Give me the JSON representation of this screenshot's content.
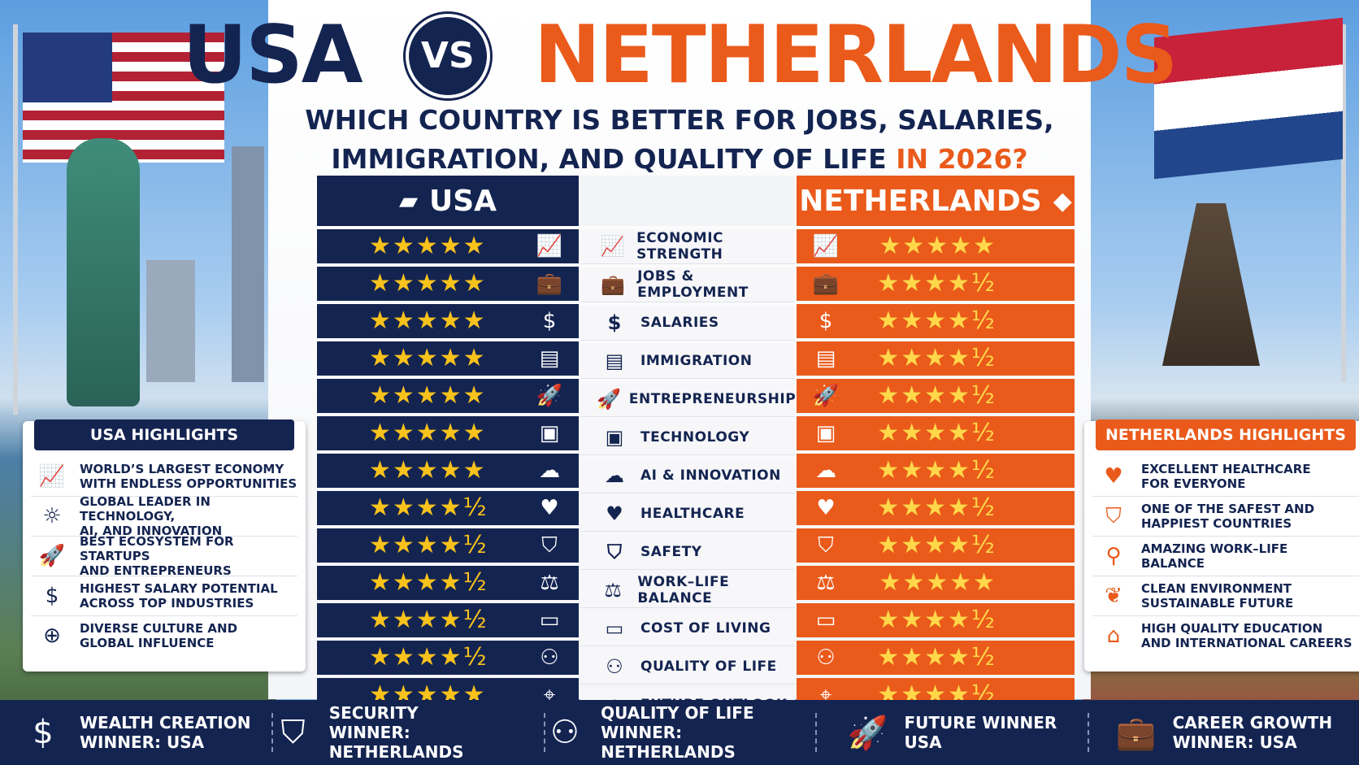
{
  "title": {
    "left": "USA",
    "vs": "VS",
    "right": "NETHERLANDS"
  },
  "subtitle": {
    "line1": "WHICH COUNTRY IS BETTER FOR JOBS, SALARIES,",
    "line2": "IMMIGRATION, AND QUALITY OF LIFE",
    "accent": "IN 2026?"
  },
  "table": {
    "usa_header": "USA",
    "nl_header": "NETHERLANDS",
    "rows": [
      {
        "label": "ECONOMIC STRENGTH",
        "icon": "chart-icon",
        "usa": "★★★★★",
        "nl": "★★★★★"
      },
      {
        "label": "JOBS & EMPLOYMENT",
        "icon": "briefcase-icon",
        "usa": "★★★★★",
        "nl": "★★★★½"
      },
      {
        "label": "SALARIES",
        "icon": "dollar-icon",
        "usa": "★★★★★",
        "nl": "★★★★½"
      },
      {
        "label": "IMMIGRATION",
        "icon": "passport-icon",
        "usa": "★★★★★",
        "nl": "★★★★½"
      },
      {
        "label": "ENTREPRENEURSHIP",
        "icon": "rocket-icon",
        "usa": "★★★★★",
        "nl": "★★★★½"
      },
      {
        "label": "TECHNOLOGY",
        "icon": "chip-icon",
        "usa": "★★★★★",
        "nl": "★★★★½"
      },
      {
        "label": "AI & INNOVATION",
        "icon": "brain-icon",
        "usa": "★★★★★",
        "nl": "★★★★½"
      },
      {
        "label": "HEALTHCARE",
        "icon": "heart-icon",
        "usa": "★★★★½",
        "nl": "★★★★½"
      },
      {
        "label": "SAFETY",
        "icon": "shield-icon",
        "usa": "★★★★½",
        "nl": "★★★★½"
      },
      {
        "label": "WORK–LIFE BALANCE",
        "icon": "scales-icon",
        "usa": "★★★★½",
        "nl": "★★★★★"
      },
      {
        "label": "COST OF LIVING",
        "icon": "wallet-icon",
        "usa": "★★★★½",
        "nl": "★★★★½"
      },
      {
        "label": "QUALITY OF LIFE",
        "icon": "family-icon",
        "usa": "★★★★½",
        "nl": "★★★★½"
      },
      {
        "label": "FUTURE OUTLOOK",
        "icon": "telescope-icon",
        "usa": "★★★★★",
        "nl": "★★★★½"
      }
    ]
  },
  "usa_highlights": {
    "title": "USA HIGHLIGHTS",
    "items": [
      {
        "line1": "WORLD’S LARGEST ECONOMY",
        "line2": "WITH ENDLESS OPPORTUNITIES",
        "icon": "chart-icon"
      },
      {
        "line1": "GLOBAL LEADER IN TECHNOLOGY,",
        "line2": "AI, AND INNOVATION",
        "icon": "lightbulb-icon"
      },
      {
        "line1": "BEST ECOSYSTEM FOR STARTUPS",
        "line2": "AND ENTREPRENEURS",
        "icon": "rocket-icon"
      },
      {
        "line1": "HIGHEST SALARY POTENTIAL",
        "line2": "ACROSS TOP INDUSTRIES",
        "icon": "dollar-icon"
      },
      {
        "line1": "DIVERSE CULTURE AND",
        "line2": "GLOBAL INFLUENCE",
        "icon": "globe-icon"
      }
    ]
  },
  "nl_highlights": {
    "title": "NETHERLANDS HIGHLIGHTS",
    "items": [
      {
        "line1": "EXCELLENT HEALTHCARE",
        "line2": "FOR EVERYONE",
        "icon": "heart-icon"
      },
      {
        "line1": "ONE OF THE SAFEST AND",
        "line2": "HAPPIEST COUNTRIES",
        "icon": "shield-icon"
      },
      {
        "line1": "AMAZING WORK–LIFE",
        "line2": "BALANCE",
        "icon": "bicycle-icon"
      },
      {
        "line1": "CLEAN ENVIRONMENT",
        "line2": "SUSTAINABLE FUTURE",
        "icon": "leaf-icon"
      },
      {
        "line1": "HIGH QUALITY EDUCATION",
        "line2": "AND INTERNATIONAL CAREERS",
        "icon": "graduation-cap-icon"
      }
    ]
  },
  "footer": [
    {
      "line1": "WEALTH CREATION",
      "line2": "WINNER: USA",
      "icon": "dollar-icon"
    },
    {
      "line1": "SECURITY",
      "line2": "WINNER: NETHERLANDS",
      "icon": "shield-icon"
    },
    {
      "line1": "QUALITY OF LIFE",
      "line2": "WINNER: NETHERLANDS",
      "icon": "family-icon"
    },
    {
      "line1": "FUTURE WINNER",
      "line2": "USA",
      "icon": "rocket-icon"
    },
    {
      "line1": "CAREER GROWTH",
      "line2": "WINNER: USA",
      "icon": "briefcase-icon"
    }
  ],
  "colors": {
    "navy": "#142451",
    "orange": "#ea5a1b",
    "star": "#f8c21c"
  }
}
